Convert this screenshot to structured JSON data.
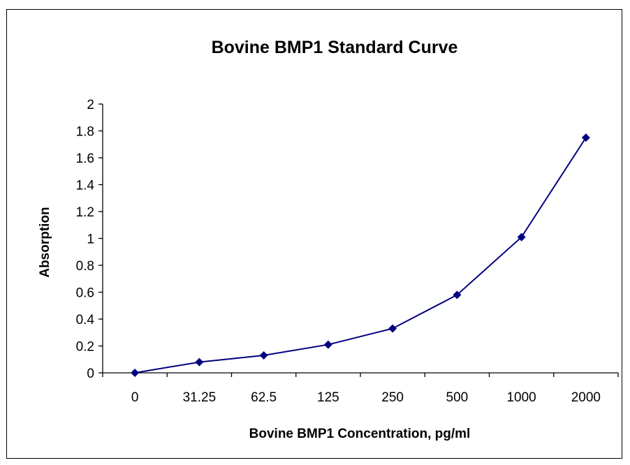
{
  "chart_data": {
    "type": "line",
    "title": "Bovine BMP1 Standard Curve",
    "xlabel": "Bovine BMP1 Concentration, pg/ml",
    "ylabel": "Absorption",
    "categories": [
      "0",
      "31.25",
      "62.5",
      "125",
      "250",
      "500",
      "1000",
      "2000"
    ],
    "series": [
      {
        "values": [
          0,
          0.08,
          0.13,
          0.21,
          0.33,
          0.58,
          1.01,
          1.75
        ]
      }
    ],
    "ylim": [
      0,
      2
    ],
    "yticks": [
      "0",
      "0.2",
      "0.4",
      "0.6",
      "0.8",
      "1",
      "1.2",
      "1.4",
      "1.6",
      "1.8",
      "2"
    ],
    "grid": false,
    "legend": "none",
    "line_color": "#000080",
    "marker": "diamond"
  }
}
